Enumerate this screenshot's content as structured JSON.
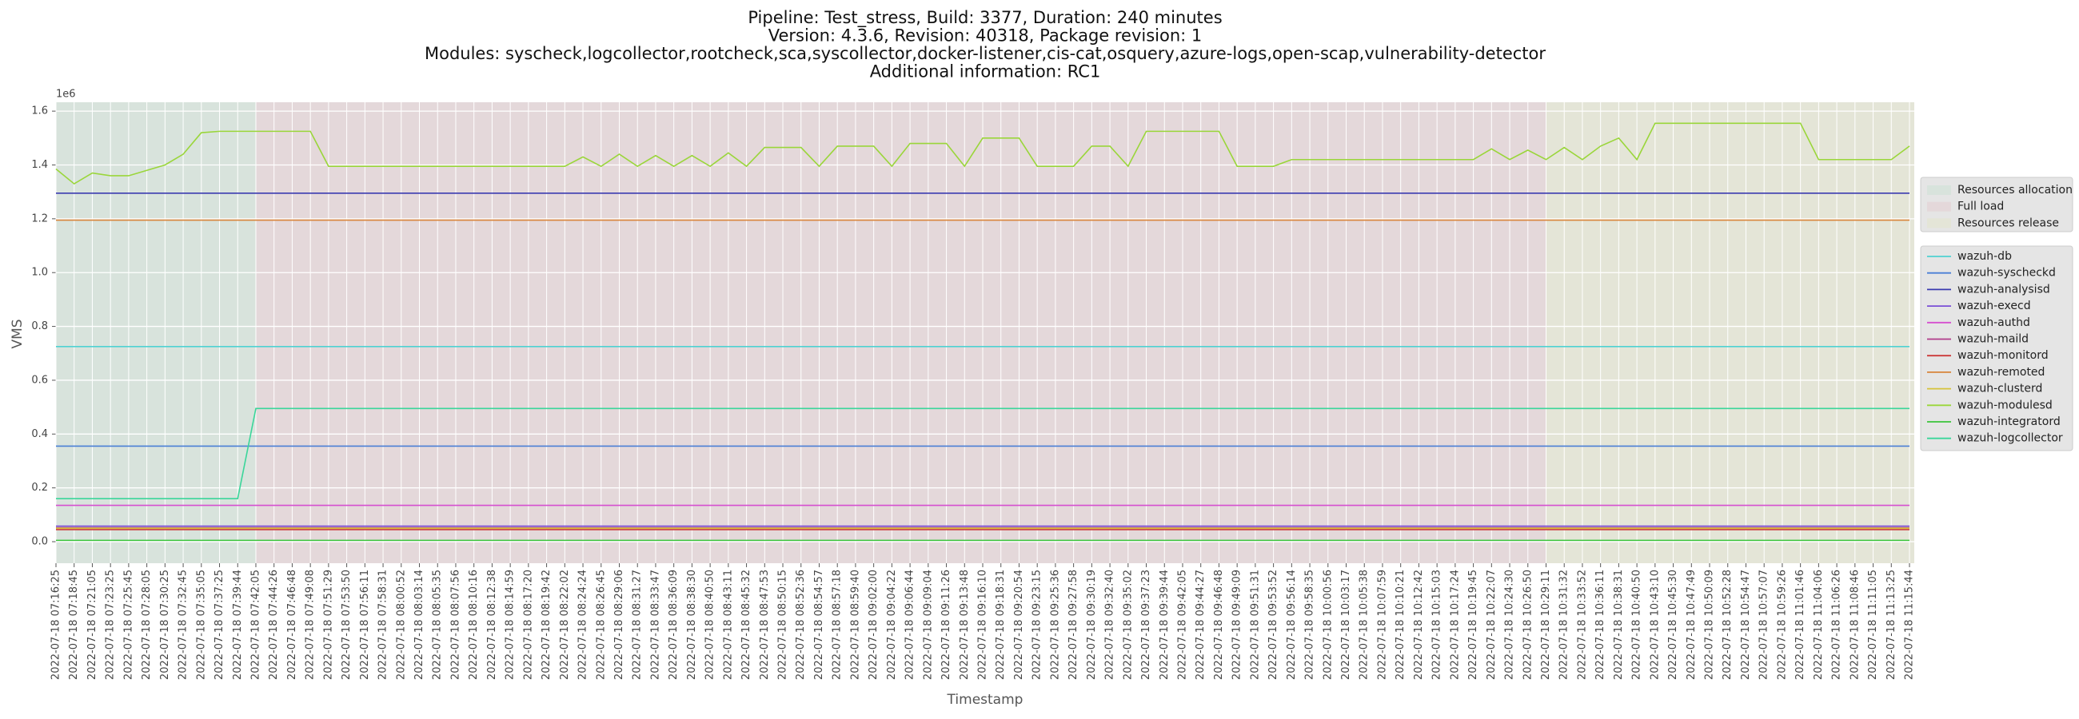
{
  "chart_data": {
    "type": "line",
    "title_lines": [
      "Pipeline: Test_stress, Build: 3377, Duration: 240 minutes",
      "Version: 4.3.6, Revision: 40318, Package revision: 1",
      "Modules: syscheck,logcollector,rootcheck,sca,syscollector,docker-listener,cis-cat,osquery,azure-logs,open-scap,vulnerability-detector",
      "Additional information: RC1"
    ],
    "x_label": "Timestamp",
    "y_label": "VMS",
    "y_offset_label": "1e6",
    "categories": [
      "2022-07-18 07:16:25",
      "2022-07-18 07:18:45",
      "2022-07-18 07:21:05",
      "2022-07-18 07:23:25",
      "2022-07-18 07:25:45",
      "2022-07-18 07:28:05",
      "2022-07-18 07:30:25",
      "2022-07-18 07:32:45",
      "2022-07-18 07:35:05",
      "2022-07-18 07:37:25",
      "2022-07-18 07:39:44",
      "2022-07-18 07:42:05",
      "2022-07-18 07:44:26",
      "2022-07-18 07:46:48",
      "2022-07-18 07:49:08",
      "2022-07-18 07:51:29",
      "2022-07-18 07:53:50",
      "2022-07-18 07:56:11",
      "2022-07-18 07:58:31",
      "2022-07-18 08:00:52",
      "2022-07-18 08:03:14",
      "2022-07-18 08:05:35",
      "2022-07-18 08:07:56",
      "2022-07-18 08:10:16",
      "2022-07-18 08:12:38",
      "2022-07-18 08:14:59",
      "2022-07-18 08:17:20",
      "2022-07-18 08:19:42",
      "2022-07-18 08:22:02",
      "2022-07-18 08:24:24",
      "2022-07-18 08:26:45",
      "2022-07-18 08:29:06",
      "2022-07-18 08:31:27",
      "2022-07-18 08:33:47",
      "2022-07-18 08:36:09",
      "2022-07-18 08:38:30",
      "2022-07-18 08:40:50",
      "2022-07-18 08:43:11",
      "2022-07-18 08:45:32",
      "2022-07-18 08:47:53",
      "2022-07-18 08:50:15",
      "2022-07-18 08:52:36",
      "2022-07-18 08:54:57",
      "2022-07-18 08:57:18",
      "2022-07-18 08:59:40",
      "2022-07-18 09:02:00",
      "2022-07-18 09:04:22",
      "2022-07-18 09:06:44",
      "2022-07-18 09:09:04",
      "2022-07-18 09:11:26",
      "2022-07-18 09:13:48",
      "2022-07-18 09:16:10",
      "2022-07-18 09:18:31",
      "2022-07-18 09:20:54",
      "2022-07-18 09:23:15",
      "2022-07-18 09:25:36",
      "2022-07-18 09:27:58",
      "2022-07-18 09:30:19",
      "2022-07-18 09:32:40",
      "2022-07-18 09:35:02",
      "2022-07-18 09:37:23",
      "2022-07-18 09:39:44",
      "2022-07-18 09:42:05",
      "2022-07-18 09:44:27",
      "2022-07-18 09:46:48",
      "2022-07-18 09:49:09",
      "2022-07-18 09:51:31",
      "2022-07-18 09:53:52",
      "2022-07-18 09:56:14",
      "2022-07-18 09:58:35",
      "2022-07-18 10:00:56",
      "2022-07-18 10:03:17",
      "2022-07-18 10:05:38",
      "2022-07-18 10:07:59",
      "2022-07-18 10:10:21",
      "2022-07-18 10:12:42",
      "2022-07-18 10:15:03",
      "2022-07-18 10:17:24",
      "2022-07-18 10:19:45",
      "2022-07-18 10:22:07",
      "2022-07-18 10:24:30",
      "2022-07-18 10:26:50",
      "2022-07-18 10:29:11",
      "2022-07-18 10:31:32",
      "2022-07-18 10:33:52",
      "2022-07-18 10:36:11",
      "2022-07-18 10:38:31",
      "2022-07-18 10:40:50",
      "2022-07-18 10:43:10",
      "2022-07-18 10:45:30",
      "2022-07-18 10:47:49",
      "2022-07-18 10:50:09",
      "2022-07-18 10:52:28",
      "2022-07-18 10:54:47",
      "2022-07-18 10:57:07",
      "2022-07-18 10:59:26",
      "2022-07-18 11:01:46",
      "2022-07-18 11:04:06",
      "2022-07-18 11:06:26",
      "2022-07-18 11:08:46",
      "2022-07-18 11:11:05",
      "2022-07-18 11:13:25",
      "2022-07-18 11:15:44"
    ],
    "spans": [
      {
        "name": "Resources allocation",
        "color": "#d8e3dc",
        "start": "2022-07-18 07:16:25",
        "end": "2022-07-18 07:42:05"
      },
      {
        "name": "Full load",
        "color": "#e4d8da",
        "start": "2022-07-18 07:42:05",
        "end": "2022-07-18 10:29:11"
      },
      {
        "name": "Resources release",
        "color": "#e4e5d7",
        "start": "2022-07-18 10:29:11",
        "end": "2022-07-18 11:15:44"
      }
    ],
    "series": [
      {
        "name": "wazuh-db",
        "color": "#4fd2d2",
        "x": [
          "2022-07-18 07:16:25",
          "2022-07-18 11:15:44"
        ],
        "values": [
          0.725,
          0.725
        ]
      },
      {
        "name": "wazuh-syscheckd",
        "color": "#4a7fd6",
        "x": [
          "2022-07-18 07:16:25",
          "2022-07-18 11:15:44"
        ],
        "values": [
          0.355,
          0.355
        ]
      },
      {
        "name": "wazuh-analysisd",
        "color": "#3b3bb0",
        "x": [
          "2022-07-18 07:16:25",
          "2022-07-18 11:15:44"
        ],
        "values": [
          1.295,
          1.295
        ]
      },
      {
        "name": "wazuh-execd",
        "color": "#7a4fd6",
        "x": [
          "2022-07-18 07:16:25",
          "2022-07-18 11:15:44"
        ],
        "values": [
          0.058,
          0.058
        ]
      },
      {
        "name": "wazuh-authd",
        "color": "#d64fd0",
        "x": [
          "2022-07-18 07:16:25",
          "2022-07-18 11:15:44"
        ],
        "values": [
          0.135,
          0.135
        ]
      },
      {
        "name": "wazuh-maild",
        "color": "#b03a8a",
        "x": [
          "2022-07-18 07:16:25",
          "2022-07-18 11:15:44"
        ],
        "values": [
          0.052,
          0.052
        ]
      },
      {
        "name": "wazuh-monitord",
        "color": "#cc3a3a",
        "x": [
          "2022-07-18 07:16:25",
          "2022-07-18 11:15:44"
        ],
        "values": [
          0.045,
          0.045
        ]
      },
      {
        "name": "wazuh-remoted",
        "color": "#d8843a",
        "x": [
          "2022-07-18 07:16:25",
          "2022-07-18 11:15:44"
        ],
        "values": [
          1.195,
          1.195
        ]
      },
      {
        "name": "wazuh-clusterd",
        "color": "#d6c23a",
        "x": [
          "2022-07-18 07:16:25",
          "2022-07-18 11:15:44"
        ],
        "values": [
          0.05,
          0.05
        ]
      },
      {
        "name": "wazuh-modulesd",
        "color": "#9ad63a",
        "values": [
          1.385,
          1.33,
          1.37,
          1.36,
          1.36,
          1.38,
          1.4,
          1.44,
          1.52,
          1.525,
          1.525,
          1.525,
          1.525,
          1.525,
          1.525,
          1.395,
          1.395,
          1.395,
          1.395,
          1.395,
          1.395,
          1.395,
          1.395,
          1.395,
          1.395,
          1.395,
          1.395,
          1.395,
          1.395,
          1.43,
          1.395,
          1.44,
          1.395,
          1.435,
          1.395,
          1.435,
          1.395,
          1.445,
          1.395,
          1.465,
          1.465,
          1.465,
          1.395,
          1.47,
          1.47,
          1.47,
          1.395,
          1.48,
          1.48,
          1.48,
          1.395,
          1.5,
          1.5,
          1.5,
          1.395,
          1.395,
          1.395,
          1.47,
          1.47,
          1.395,
          1.525,
          1.525,
          1.525,
          1.525,
          1.525,
          1.395,
          1.395,
          1.395,
          1.42,
          1.42,
          1.42,
          1.42,
          1.42,
          1.42,
          1.42,
          1.42,
          1.42,
          1.42,
          1.42,
          1.46,
          1.42,
          1.455,
          1.42,
          1.465,
          1.42,
          1.47,
          1.5,
          1.42,
          1.555,
          1.555,
          1.555,
          1.555,
          1.555,
          1.555,
          1.555,
          1.555,
          1.555,
          1.42,
          1.42,
          1.42,
          1.42,
          1.42,
          1.47
        ]
      },
      {
        "name": "wazuh-integratord",
        "color": "#3ac43a",
        "x": [
          "2022-07-18 07:16:25",
          "2022-07-18 11:15:44"
        ],
        "values": [
          0.005,
          0.005
        ]
      },
      {
        "name": "wazuh-logcollector",
        "color": "#3ad69a",
        "x": [
          "2022-07-18 07:16:25",
          "2022-07-18 07:39:44",
          "2022-07-18 07:42:05",
          "2022-07-18 11:15:44"
        ],
        "values": [
          0.16,
          0.16,
          0.495,
          0.495
        ]
      }
    ],
    "ylim": [
      -0.08,
      1.633
    ],
    "yticks": [
      {
        "value": 0,
        "label": "0.0"
      },
      0.2,
      0.4,
      0.6,
      0.8,
      {
        "value": 1,
        "label": "1.0"
      },
      1.2,
      1.4,
      1.6
    ],
    "grid": true
  }
}
